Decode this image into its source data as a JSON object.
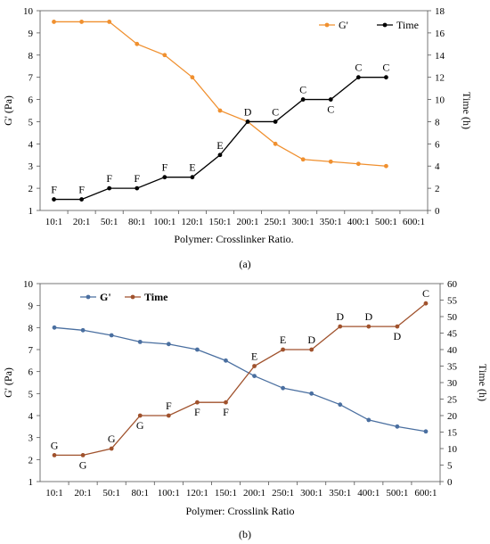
{
  "chart_data": [
    {
      "type": "line",
      "caption": "(a)",
      "categories": [
        "10:1",
        "20:1",
        "50:1",
        "80:1",
        "100:1",
        "120:1",
        "150:1",
        "200:1",
        "250:1",
        "300:1",
        "350:1",
        "400:1",
        "500:1",
        "600:1"
      ],
      "xlabel": "Polymer: Crosslinker Ratio.",
      "ylabel": "G' (Pa)",
      "y2label": "Time (h)",
      "ylim": [
        1,
        10
      ],
      "yticks": [
        1,
        2,
        3,
        4,
        5,
        6,
        7,
        8,
        9,
        10
      ],
      "y2lim": [
        0,
        18
      ],
      "y2ticks": [
        0,
        2,
        4,
        6,
        8,
        10,
        12,
        14,
        16,
        18
      ],
      "grid": false,
      "legend_position": "top-right",
      "series": [
        {
          "name": "G'",
          "axis": "left",
          "color": "#f0902f",
          "values": [
            9.5,
            9.5,
            9.5,
            8.5,
            8.0,
            7.0,
            5.5,
            5.0,
            4.0,
            3.3,
            3.2,
            3.1,
            3.0,
            null
          ]
        },
        {
          "name": "Time",
          "axis": "right",
          "color": "#000000",
          "values": [
            1,
            1,
            2,
            2,
            3,
            3,
            5,
            8,
            8,
            10,
            10,
            12,
            12,
            null
          ],
          "point_labels": [
            "F",
            "F",
            "F",
            "F",
            "F",
            "E",
            "E",
            "D",
            "C",
            "C",
            "C",
            "C",
            "C",
            null
          ],
          "label_below": [
            false,
            false,
            false,
            false,
            false,
            false,
            false,
            false,
            false,
            false,
            true,
            false,
            false,
            false
          ]
        }
      ]
    },
    {
      "type": "line",
      "caption": "(b)",
      "categories": [
        "10:1",
        "20:1",
        "50:1",
        "80:1",
        "100:1",
        "120:1",
        "150:1",
        "200:1",
        "250:1",
        "300:1",
        "350:1",
        "400:1",
        "500:1",
        "600:1"
      ],
      "xlabel": "Polymer: Crosslink Ratio",
      "ylabel": "G' (Pa)",
      "y2label": "Time (h)",
      "ylim": [
        1,
        10
      ],
      "yticks": [
        1,
        2,
        3,
        4,
        5,
        6,
        7,
        8,
        9,
        10
      ],
      "y2lim": [
        0,
        60
      ],
      "y2ticks": [
        0,
        5,
        10,
        15,
        20,
        25,
        30,
        35,
        40,
        45,
        50,
        55,
        60
      ],
      "grid": false,
      "legend_position": "top-left",
      "series": [
        {
          "name": "G'",
          "axis": "left",
          "color": "#4a6fa0",
          "values": [
            8.0,
            7.88,
            7.65,
            7.35,
            7.25,
            7.0,
            6.5,
            5.8,
            5.25,
            5.0,
            4.5,
            3.8,
            3.5,
            3.28
          ]
        },
        {
          "name": "Time",
          "axis": "right",
          "color": "#a0522d",
          "values": [
            8,
            8,
            10,
            20,
            20,
            24,
            24,
            35,
            40,
            40,
            47,
            47,
            47,
            54
          ],
          "point_labels": [
            "G",
            "G",
            "G",
            "G",
            "F",
            "F",
            "F",
            "E",
            "E",
            "D",
            "D",
            "D",
            "D",
            "C"
          ],
          "label_below": [
            false,
            true,
            false,
            true,
            false,
            true,
            true,
            false,
            false,
            false,
            false,
            false,
            true,
            false
          ]
        }
      ]
    }
  ]
}
